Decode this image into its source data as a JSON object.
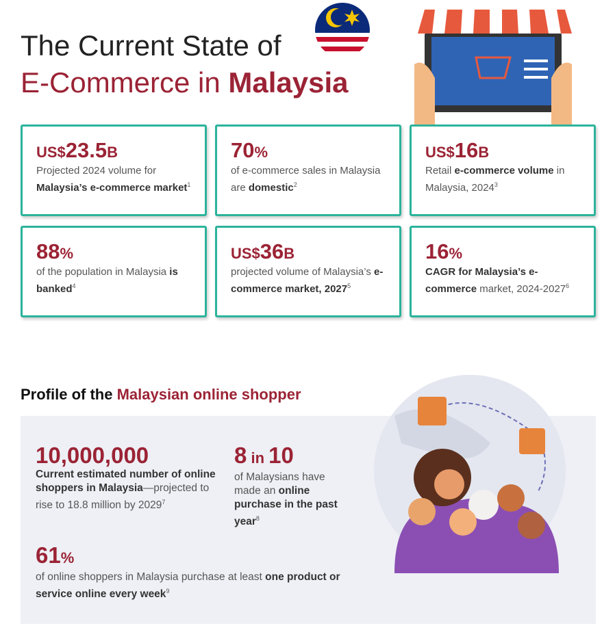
{
  "header": {
    "line1": "The Current State of",
    "line2": [
      {
        "text": "E-Commerce in "
      },
      {
        "text": "Malaysia",
        "bold": true
      }
    ]
  },
  "cards": [
    {
      "figure": [
        {
          "text": "US$",
          "small": true
        },
        {
          "text": "23.5"
        },
        {
          "text": "B",
          "small": true
        }
      ],
      "desc": [
        {
          "text": "Projected 2024 volume for "
        },
        {
          "text": "Malaysia’s e-commerce market",
          "bold": true
        }
      ],
      "note": "1"
    },
    {
      "figure": [
        {
          "text": "70"
        },
        {
          "text": "%",
          "small": true
        }
      ],
      "desc": [
        {
          "text": "of e-commerce sales in Malaysia are "
        },
        {
          "text": "domestic",
          "bold": true
        }
      ],
      "note": "2"
    },
    {
      "figure": [
        {
          "text": "US$",
          "small": true
        },
        {
          "text": "16"
        },
        {
          "text": "B",
          "small": true
        }
      ],
      "desc": [
        {
          "text": "Retail "
        },
        {
          "text": "e-commerce volume",
          "bold": true
        },
        {
          "text": " in Malaysia, 2024"
        }
      ],
      "note": "3"
    },
    {
      "figure": [
        {
          "text": "88"
        },
        {
          "text": "%",
          "small": true
        }
      ],
      "desc": [
        {
          "text": "of the population in Malaysia "
        },
        {
          "text": "is banked",
          "bold": true
        }
      ],
      "note": "4"
    },
    {
      "figure": [
        {
          "text": "US$",
          "small": true
        },
        {
          "text": "36"
        },
        {
          "text": "B",
          "small": true
        }
      ],
      "desc": [
        {
          "text": "projected volume of Malaysia’s "
        },
        {
          "text": "e-commerce market, 2027",
          "bold": true
        }
      ],
      "note": "5"
    },
    {
      "figure": [
        {
          "text": "16"
        },
        {
          "text": "%",
          "small": true
        }
      ],
      "desc": [
        {
          "text": "CAGR for Malaysia’s e-commerce",
          "bold": true
        },
        {
          "text": " market, 2024-2027"
        }
      ],
      "note": "6"
    }
  ],
  "profile": {
    "heading": [
      {
        "text": "Profile of the "
      },
      {
        "text": "Malaysian online shopper",
        "red": true
      }
    ],
    "stats": [
      {
        "figure": [
          {
            "text": "10,000,000"
          }
        ],
        "desc": [
          {
            "text": "Current estimated number of online shoppers in Malaysia",
            "bold": true
          },
          {
            "text": "—projected to rise to 18.8 million by 2029"
          }
        ],
        "note": "7"
      },
      {
        "figure": [
          {
            "text": "8"
          },
          {
            "text": " in ",
            "small": true
          },
          {
            "text": "10"
          }
        ],
        "desc": [
          {
            "text": "of Malaysians have made an "
          },
          {
            "text": "online purchase in the past year",
            "bold": true
          }
        ],
        "note": "8"
      },
      {
        "figure": [
          {
            "text": "61"
          },
          {
            "text": "%",
            "small": true
          }
        ],
        "desc": [
          {
            "text": "of online shoppers in Malaysia purchase at least "
          },
          {
            "text": "one product or service online every week",
            "bold": true
          }
        ],
        "note": "9"
      }
    ]
  }
}
